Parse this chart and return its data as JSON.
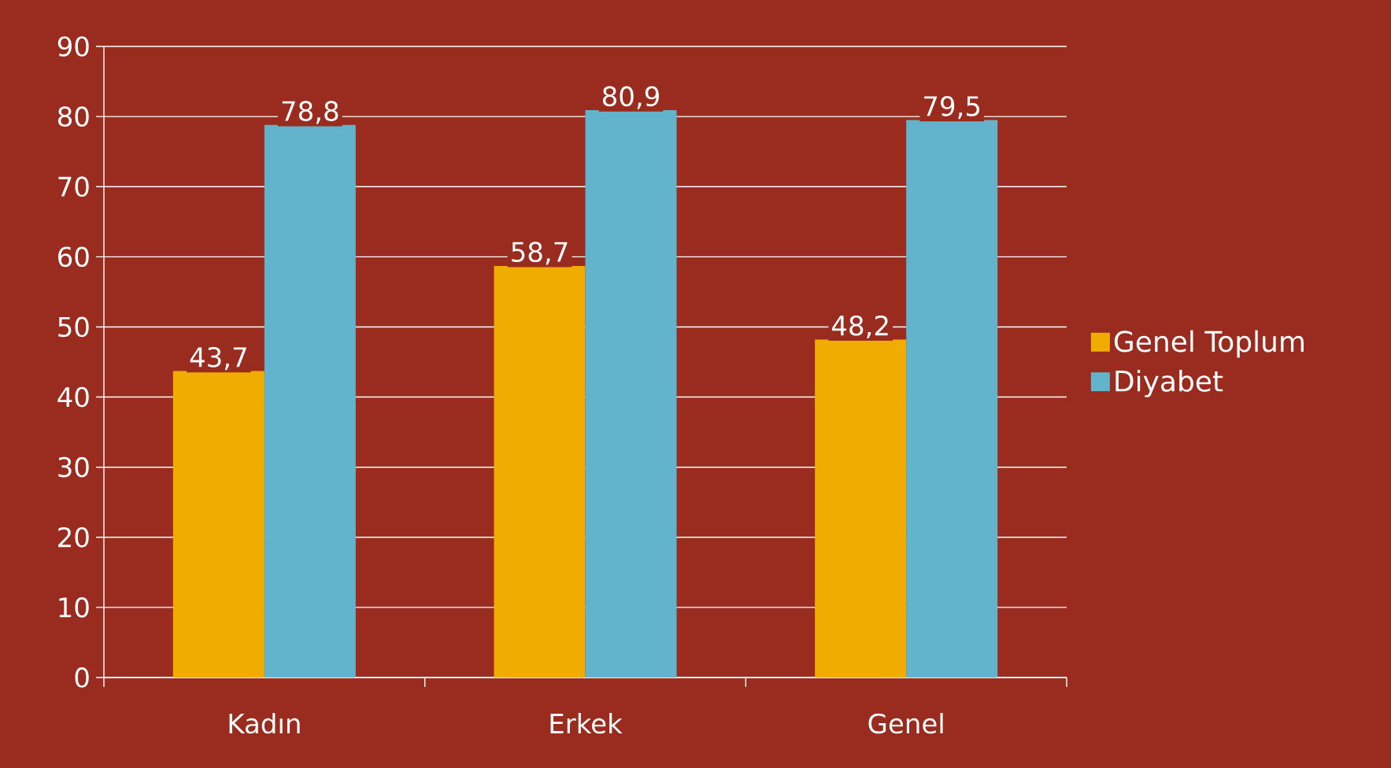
{
  "chart_data": {
    "type": "bar",
    "categories": [
      "Kadın",
      "Erkek",
      "Genel"
    ],
    "series": [
      {
        "name": "Genel Toplum",
        "color": "#f0ad00",
        "values": [
          43.7,
          58.7,
          48.2
        ],
        "value_labels": [
          "43,7",
          "58,7",
          "48,2"
        ]
      },
      {
        "name": "Diyabet",
        "color": "#62b3cc",
        "values": [
          78.8,
          80.9,
          79.5
        ],
        "value_labels": [
          "78,8",
          "80,9",
          "79,5"
        ]
      }
    ],
    "ylim": [
      0,
      90
    ],
    "yticks": [
      0,
      10,
      20,
      30,
      40,
      50,
      60,
      70,
      80,
      90
    ],
    "grid": "y",
    "legend": "right"
  }
}
